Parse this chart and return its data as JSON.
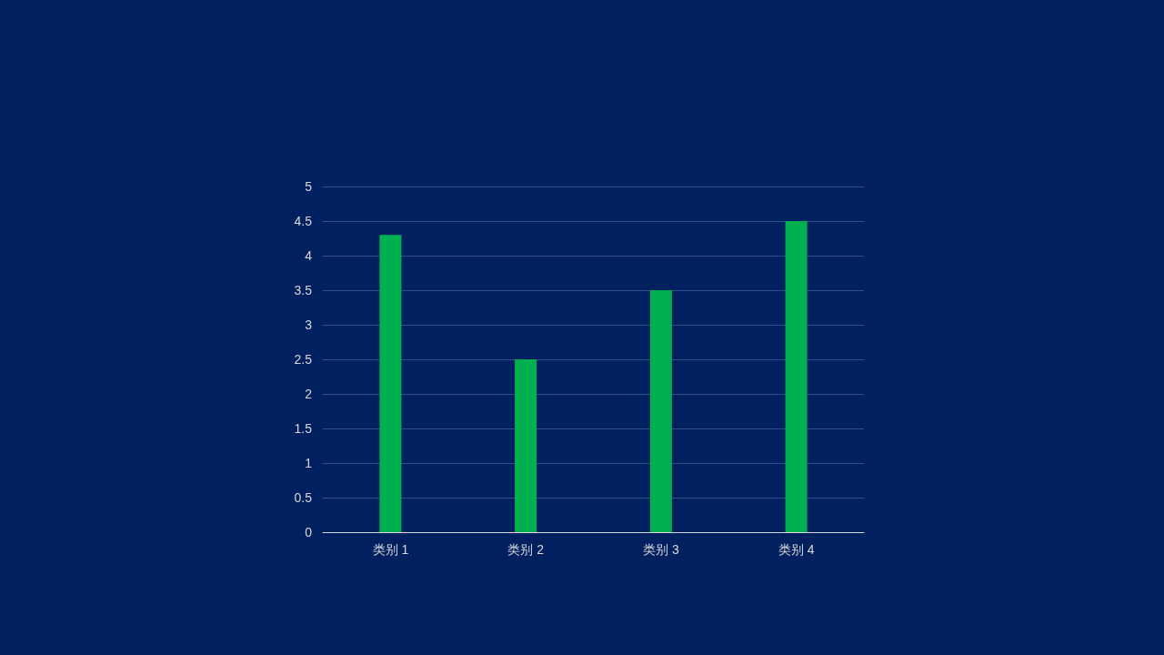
{
  "chart_data": {
    "type": "bar",
    "categories": [
      "类别 1",
      "类别 2",
      "类别 3",
      "类别 4"
    ],
    "values": [
      4.3,
      2.5,
      3.5,
      4.5
    ],
    "color": "#00b050",
    "ylim": [
      0,
      5
    ],
    "yticks": [
      0,
      0.5,
      1,
      1.5,
      2,
      2.5,
      3,
      3.5,
      4,
      4.5,
      5
    ],
    "grid": "y"
  }
}
